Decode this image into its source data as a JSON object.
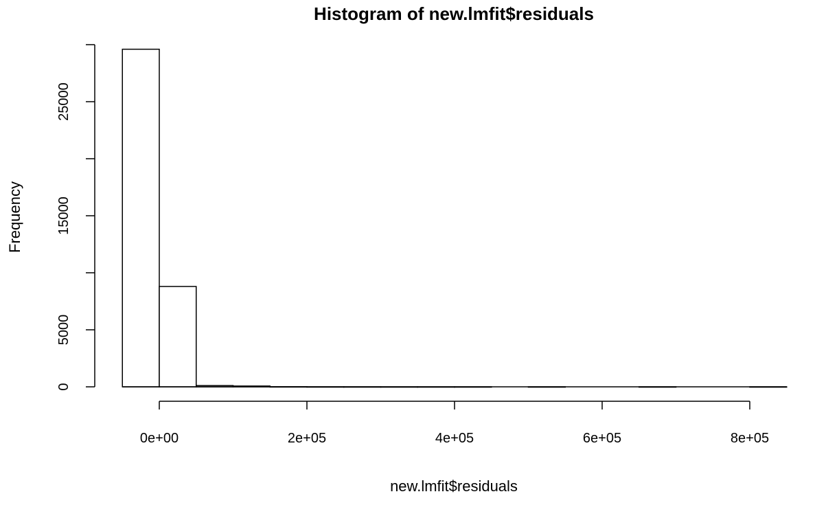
{
  "chart_data": {
    "type": "bar",
    "title": "Histogram of new.lmfit$residuals",
    "xlabel": "new.lmfit$residuals",
    "ylabel": "Frequency",
    "bin_width": 50000,
    "bins": [
      {
        "start": -50000,
        "end": 0,
        "count": 29600
      },
      {
        "start": 0,
        "end": 50000,
        "count": 8800
      },
      {
        "start": 50000,
        "end": 100000,
        "count": 110
      },
      {
        "start": 100000,
        "end": 150000,
        "count": 70
      },
      {
        "start": 150000,
        "end": 200000,
        "count": 10
      },
      {
        "start": 200000,
        "end": 250000,
        "count": 3
      },
      {
        "start": 250000,
        "end": 300000,
        "count": 2
      },
      {
        "start": 300000,
        "end": 350000,
        "count": 1
      },
      {
        "start": 350000,
        "end": 400000,
        "count": 1
      },
      {
        "start": 400000,
        "end": 450000,
        "count": 1
      },
      {
        "start": 450000,
        "end": 500000,
        "count": 0
      },
      {
        "start": 500000,
        "end": 550000,
        "count": 1
      },
      {
        "start": 550000,
        "end": 600000,
        "count": 0
      },
      {
        "start": 600000,
        "end": 650000,
        "count": 0
      },
      {
        "start": 650000,
        "end": 700000,
        "count": 1
      },
      {
        "start": 700000,
        "end": 750000,
        "count": 0
      },
      {
        "start": 750000,
        "end": 800000,
        "count": 0
      },
      {
        "start": 800000,
        "end": 850000,
        "count": 1
      }
    ],
    "xlim": [
      -50000,
      850000
    ],
    "ylim": [
      0,
      29600
    ],
    "x_ticks": [
      0,
      200000,
      400000,
      600000,
      800000
    ],
    "x_tick_labels": [
      "0e+00",
      "2e+05",
      "4e+05",
      "6e+05",
      "8e+05"
    ],
    "y_ticks": [
      0,
      5000,
      10000,
      15000,
      20000,
      25000
    ],
    "y_tick_labels": [
      "0",
      "5000",
      "",
      "15000",
      "",
      "25000"
    ],
    "grid": false,
    "legend": "none"
  }
}
